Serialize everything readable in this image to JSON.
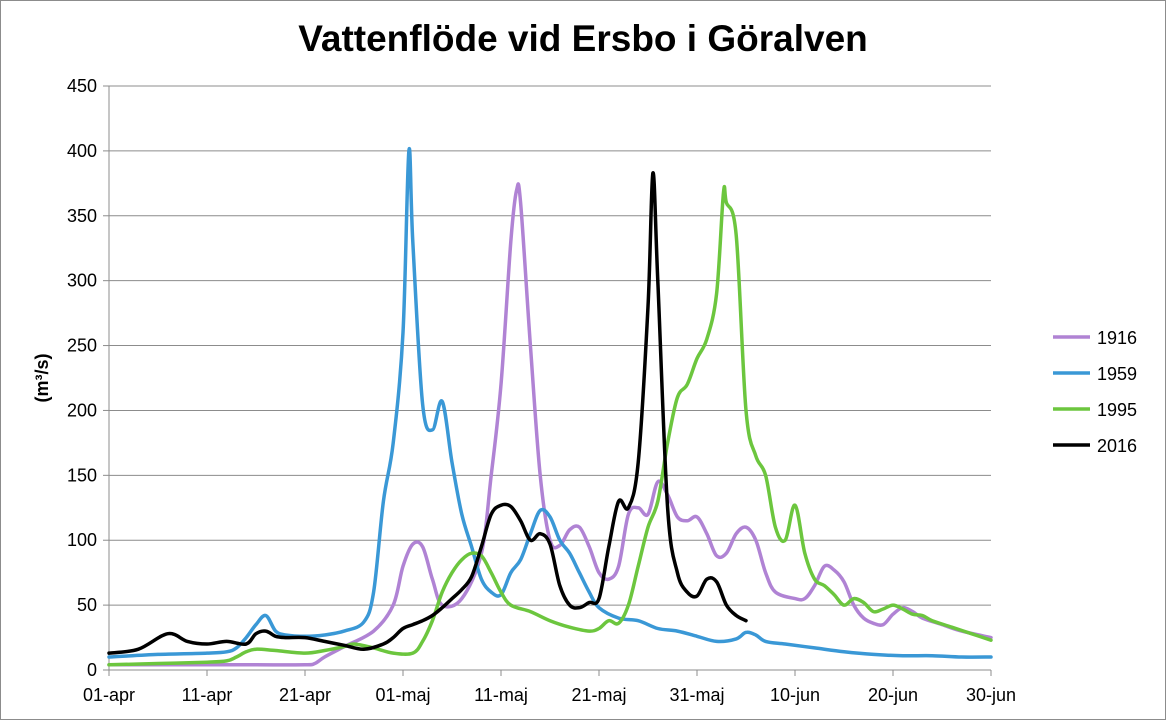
{
  "chart_data": {
    "type": "line",
    "title": "Vattenflöde vid Ersbo i Göralven",
    "ylabel": "(m³/s)",
    "xlabel": "",
    "ylim": [
      0,
      450
    ],
    "yticks": [
      0,
      50,
      100,
      150,
      200,
      250,
      300,
      350,
      400,
      450
    ],
    "xlim": [
      0,
      90
    ],
    "xticks": [
      {
        "x": 0,
        "label": "01-apr"
      },
      {
        "x": 10,
        "label": "11-apr"
      },
      {
        "x": 20,
        "label": "21-apr"
      },
      {
        "x": 30,
        "label": "01-maj"
      },
      {
        "x": 40,
        "label": "11-maj"
      },
      {
        "x": 50,
        "label": "21-maj"
      },
      {
        "x": 60,
        "label": "31-maj"
      },
      {
        "x": 70,
        "label": "10-jun"
      },
      {
        "x": 80,
        "label": "20-jun"
      },
      {
        "x": 90,
        "label": "30-jun"
      }
    ],
    "grid": "horizontal",
    "legend_position": "right",
    "series": [
      {
        "name": "1916",
        "color": "#b083d4",
        "points": [
          [
            0,
            4
          ],
          [
            5,
            4
          ],
          [
            10,
            4
          ],
          [
            15,
            4
          ],
          [
            20,
            4
          ],
          [
            21,
            5
          ],
          [
            22,
            10
          ],
          [
            24,
            18
          ],
          [
            27,
            30
          ],
          [
            29,
            50
          ],
          [
            30,
            80
          ],
          [
            31,
            97
          ],
          [
            32,
            95
          ],
          [
            33,
            70
          ],
          [
            34,
            50
          ],
          [
            36,
            55
          ],
          [
            38,
            90
          ],
          [
            39,
            150
          ],
          [
            40,
            220
          ],
          [
            41,
            330
          ],
          [
            41.6,
            370
          ],
          [
            42,
            360
          ],
          [
            43,
            250
          ],
          [
            44,
            150
          ],
          [
            45,
            100
          ],
          [
            46,
            96
          ],
          [
            47,
            108
          ],
          [
            48,
            110
          ],
          [
            49,
            95
          ],
          [
            50,
            75
          ],
          [
            51,
            70
          ],
          [
            52,
            80
          ],
          [
            53,
            120
          ],
          [
            54,
            125
          ],
          [
            55,
            120
          ],
          [
            56,
            145
          ],
          [
            57,
            135
          ],
          [
            58,
            118
          ],
          [
            59,
            115
          ],
          [
            60,
            118
          ],
          [
            61,
            105
          ],
          [
            62,
            88
          ],
          [
            63,
            90
          ],
          [
            64,
            105
          ],
          [
            65,
            110
          ],
          [
            66,
            100
          ],
          [
            67,
            75
          ],
          [
            68,
            60
          ],
          [
            70,
            55
          ],
          [
            71,
            55
          ],
          [
            72,
            65
          ],
          [
            73,
            80
          ],
          [
            74,
            77
          ],
          [
            75,
            68
          ],
          [
            76,
            50
          ],
          [
            77,
            40
          ],
          [
            78,
            36
          ],
          [
            79,
            35
          ],
          [
            80,
            43
          ],
          [
            81,
            48
          ],
          [
            82,
            45
          ],
          [
            83,
            40
          ],
          [
            85,
            35
          ],
          [
            87,
            30
          ],
          [
            90,
            25
          ]
        ]
      },
      {
        "name": "1959",
        "color": "#3a98d6",
        "points": [
          [
            0,
            10
          ],
          [
            5,
            12
          ],
          [
            10,
            13
          ],
          [
            12,
            14
          ],
          [
            13,
            17
          ],
          [
            14,
            25
          ],
          [
            15,
            35
          ],
          [
            16,
            42
          ],
          [
            17,
            30
          ],
          [
            18,
            27
          ],
          [
            20,
            26
          ],
          [
            22,
            27
          ],
          [
            24,
            30
          ],
          [
            26,
            37
          ],
          [
            27,
            60
          ],
          [
            28,
            130
          ],
          [
            29,
            175
          ],
          [
            30,
            260
          ],
          [
            30.6,
            400
          ],
          [
            31,
            330
          ],
          [
            32,
            205
          ],
          [
            33,
            185
          ],
          [
            34,
            207
          ],
          [
            35,
            160
          ],
          [
            36,
            120
          ],
          [
            37,
            95
          ],
          [
            38,
            70
          ],
          [
            39,
            60
          ],
          [
            40,
            58
          ],
          [
            41,
            75
          ],
          [
            42,
            85
          ],
          [
            43,
            105
          ],
          [
            44,
            123
          ],
          [
            45,
            118
          ],
          [
            46,
            100
          ],
          [
            47,
            90
          ],
          [
            48,
            75
          ],
          [
            49,
            60
          ],
          [
            50,
            48
          ],
          [
            52,
            40
          ],
          [
            54,
            38
          ],
          [
            56,
            32
          ],
          [
            58,
            30
          ],
          [
            60,
            26
          ],
          [
            62,
            22
          ],
          [
            64,
            24
          ],
          [
            65,
            29
          ],
          [
            66,
            27
          ],
          [
            67,
            22
          ],
          [
            69,
            20
          ],
          [
            72,
            17
          ],
          [
            75,
            14
          ],
          [
            78,
            12
          ],
          [
            81,
            11
          ],
          [
            84,
            11
          ],
          [
            87,
            10
          ],
          [
            90,
            10
          ]
        ]
      },
      {
        "name": "1995",
        "color": "#6cc63e",
        "points": [
          [
            0,
            4
          ],
          [
            5,
            5
          ],
          [
            10,
            6
          ],
          [
            12,
            7
          ],
          [
            13,
            10
          ],
          [
            14,
            14
          ],
          [
            15,
            16
          ],
          [
            17,
            15
          ],
          [
            20,
            13
          ],
          [
            22,
            15
          ],
          [
            24,
            18
          ],
          [
            25,
            20
          ],
          [
            27,
            17
          ],
          [
            29,
            13
          ],
          [
            31,
            13
          ],
          [
            32,
            22
          ],
          [
            33,
            38
          ],
          [
            34,
            60
          ],
          [
            35,
            75
          ],
          [
            36,
            85
          ],
          [
            37,
            90
          ],
          [
            38,
            88
          ],
          [
            39,
            75
          ],
          [
            40,
            60
          ],
          [
            41,
            50
          ],
          [
            43,
            45
          ],
          [
            45,
            38
          ],
          [
            47,
            33
          ],
          [
            49,
            30
          ],
          [
            50,
            32
          ],
          [
            51,
            38
          ],
          [
            52,
            36
          ],
          [
            53,
            50
          ],
          [
            54,
            80
          ],
          [
            55,
            110
          ],
          [
            56,
            130
          ],
          [
            57,
            175
          ],
          [
            58,
            210
          ],
          [
            59,
            220
          ],
          [
            60,
            240
          ],
          [
            61,
            255
          ],
          [
            62,
            290
          ],
          [
            62.7,
            368
          ],
          [
            63,
            360
          ],
          [
            64,
            335
          ],
          [
            65,
            200
          ],
          [
            66,
            165
          ],
          [
            67,
            150
          ],
          [
            68,
            110
          ],
          [
            69,
            100
          ],
          [
            70,
            127
          ],
          [
            71,
            90
          ],
          [
            72,
            70
          ],
          [
            73,
            65
          ],
          [
            74,
            58
          ],
          [
            75,
            50
          ],
          [
            76,
            55
          ],
          [
            77,
            52
          ],
          [
            78,
            45
          ],
          [
            79,
            47
          ],
          [
            80,
            50
          ],
          [
            81,
            47
          ],
          [
            82,
            43
          ],
          [
            83,
            42
          ],
          [
            84,
            38
          ],
          [
            86,
            33
          ],
          [
            88,
            28
          ],
          [
            90,
            23
          ]
        ]
      },
      {
        "name": "2016",
        "color": "#000000",
        "points": [
          [
            0,
            13
          ],
          [
            3,
            16
          ],
          [
            6,
            28
          ],
          [
            8,
            22
          ],
          [
            10,
            20
          ],
          [
            12,
            22
          ],
          [
            14,
            20
          ],
          [
            15,
            28
          ],
          [
            16,
            30
          ],
          [
            17,
            26
          ],
          [
            18,
            25
          ],
          [
            20,
            25
          ],
          [
            22,
            22
          ],
          [
            24,
            19
          ],
          [
            26,
            16
          ],
          [
            28,
            20
          ],
          [
            29,
            25
          ],
          [
            30,
            32
          ],
          [
            31,
            35
          ],
          [
            32,
            38
          ],
          [
            33,
            42
          ],
          [
            34,
            48
          ],
          [
            35,
            55
          ],
          [
            36,
            62
          ],
          [
            37,
            72
          ],
          [
            38,
            95
          ],
          [
            39,
            120
          ],
          [
            40,
            127
          ],
          [
            41,
            126
          ],
          [
            42,
            115
          ],
          [
            43,
            100
          ],
          [
            44,
            105
          ],
          [
            45,
            97
          ],
          [
            46,
            65
          ],
          [
            47,
            50
          ],
          [
            48,
            48
          ],
          [
            49,
            52
          ],
          [
            50,
            55
          ],
          [
            51,
            95
          ],
          [
            52,
            130
          ],
          [
            53,
            125
          ],
          [
            54,
            160
          ],
          [
            55,
            280
          ],
          [
            55.5,
            383
          ],
          [
            56,
            300
          ],
          [
            57,
            125
          ],
          [
            58,
            75
          ],
          [
            59,
            60
          ],
          [
            60,
            57
          ],
          [
            61,
            70
          ],
          [
            62,
            68
          ],
          [
            63,
            50
          ],
          [
            64,
            42
          ],
          [
            65,
            38
          ]
        ]
      }
    ]
  }
}
